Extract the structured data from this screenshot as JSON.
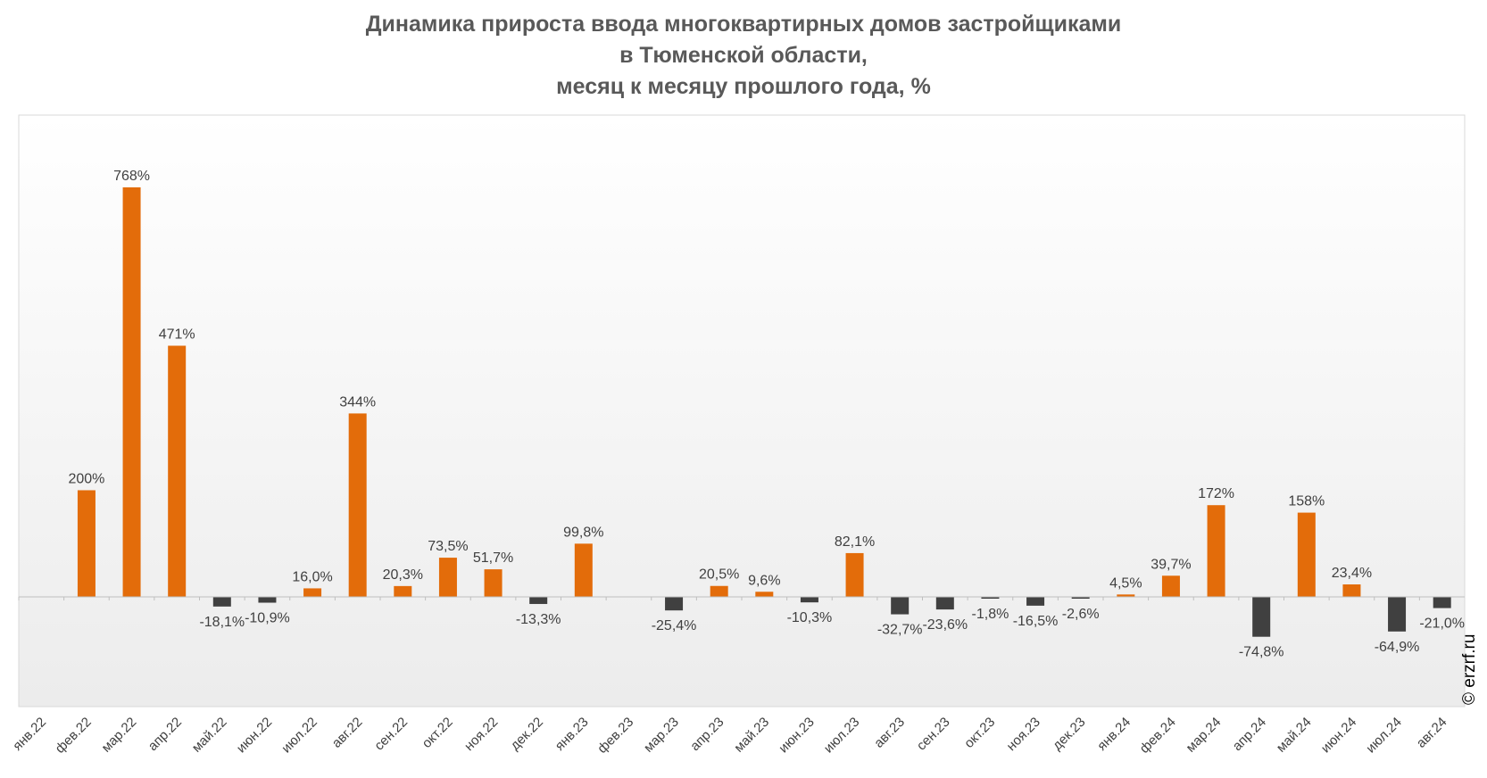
{
  "title_lines": [
    "Динамика прироста ввода многоквартирных домов застройщиками",
    "в Тюменской области,",
    "месяц к месяцу прошлого года, %"
  ],
  "copyright": "© erzrf.ru",
  "colors": {
    "positive": "#E36C0A",
    "negative": "#404040",
    "label_text": "#404040",
    "axis": "#BFBFBF"
  },
  "chart_data": {
    "type": "bar",
    "title": "Динамика прироста ввода многоквартирных домов застройщиками в Тюменской области, месяц к месяцу прошлого года, %",
    "xlabel": "",
    "ylabel": "",
    "ylim": [
      -200,
      800
    ],
    "grid": false,
    "legend": "none",
    "categories": [
      "янв.22",
      "фев.22",
      "мар.22",
      "апр.22",
      "май.22",
      "июн.22",
      "июл.22",
      "авг.22",
      "сен.22",
      "окт.22",
      "ноя.22",
      "дек.22",
      "янв.23",
      "фев.23",
      "мар.23",
      "апр.23",
      "май.23",
      "июн.23",
      "июл.23",
      "авг.23",
      "сен.23",
      "окт.23",
      "ноя.23",
      "дек.23",
      "янв.24",
      "фев.24",
      "мар.24",
      "апр.24",
      "май.24",
      "июн.24",
      "июл.24",
      "авг.24"
    ],
    "values": [
      null,
      200,
      768,
      471,
      -18.1,
      -10.9,
      16.0,
      344,
      20.3,
      73.5,
      51.7,
      -13.3,
      99.8,
      null,
      -25.4,
      20.5,
      9.6,
      -10.3,
      82.1,
      -32.7,
      -23.6,
      -1.8,
      -16.5,
      -2.6,
      4.5,
      39.7,
      172,
      -74.8,
      158,
      23.4,
      -64.9,
      -21.0
    ],
    "labels": [
      "",
      "200%",
      "768%",
      "471%",
      "-18,1%",
      "-10,9%",
      "16,0%",
      "344%",
      "20,3%",
      "73,5%",
      "51,7%",
      "-13,3%",
      "99,8%",
      "",
      "-25,4%",
      "20,5%",
      "9,6%",
      "-10,3%",
      "82,1%",
      "-32,7%",
      "-23,6%",
      "-1,8%",
      "-16,5%",
      "-2,6%",
      "4,5%",
      "39,7%",
      "172%",
      "-74,8%",
      "158%",
      "23,4%",
      "-64,9%",
      "-21,0%"
    ]
  }
}
